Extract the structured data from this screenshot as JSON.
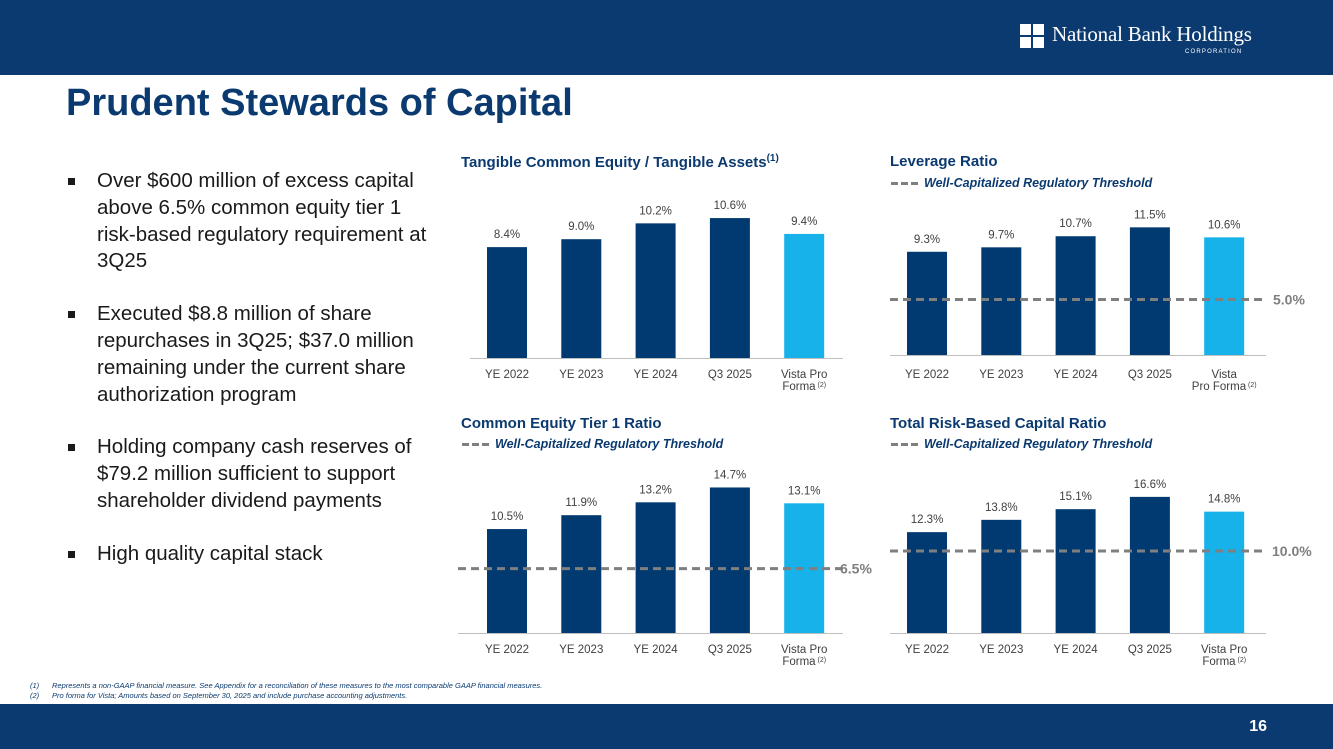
{
  "header": {
    "logo_name": "National Bank Holdings",
    "logo_sub": "CORPORATION",
    "colors": {
      "brand": "#0b3a70",
      "bar_dark": "#003a70",
      "bar_light": "#17b2e9",
      "threshold": "#7f7f7f"
    }
  },
  "title": "Prudent Stewards of Capital",
  "bullets": [
    "Over $600 million of excess capital above 6.5% common equity tier 1 risk-based regulatory requirement at 3Q25",
    "Executed $8.8 million of share repurchases in 3Q25; $37.0 million remaining under the current share authorization program",
    "Holding company cash reserves of $79.2 million sufficient to support shareholder dividend payments",
    "High quality capital stack"
  ],
  "legend_text": "Well-Capitalized Regulatory Threshold",
  "chart_data": [
    {
      "type": "bar",
      "title": "Tangible Common Equity / Tangible Assets",
      "title_sup": "(1)",
      "categories": [
        "YE 2022",
        "YE 2023",
        "YE 2024",
        "Q3 2025",
        "Vista Pro Forma"
      ],
      "category_lines": [
        [
          "YE 2022"
        ],
        [
          "YE 2023"
        ],
        [
          "YE 2024"
        ],
        [
          "Q3 2025"
        ],
        [
          "Vista Pro",
          "Forma"
        ]
      ],
      "values": [
        8.4,
        9.0,
        10.2,
        10.6,
        9.4
      ],
      "labels": [
        "8.4%",
        "9.0%",
        "10.2%",
        "10.6%",
        "9.4%"
      ],
      "highlight_index": 4,
      "footnote_ref": "(2)",
      "threshold": null
    },
    {
      "type": "bar",
      "title": "Leverage Ratio",
      "categories": [
        "YE 2022",
        "YE 2023",
        "YE 2024",
        "Q3 2025",
        "Vista Pro Forma"
      ],
      "category_lines": [
        [
          "YE 2022"
        ],
        [
          "YE 2023"
        ],
        [
          "YE 2024"
        ],
        [
          "Q3 2025"
        ],
        [
          "Vista",
          "Pro Forma"
        ]
      ],
      "values": [
        9.3,
        9.7,
        10.7,
        11.5,
        10.6
      ],
      "labels": [
        "9.3%",
        "9.7%",
        "10.7%",
        "11.5%",
        "10.6%"
      ],
      "highlight_index": 4,
      "footnote_ref": "(2)",
      "threshold": 5.0,
      "threshold_label": "5.0%"
    },
    {
      "type": "bar",
      "title": "Common Equity Tier 1 Ratio",
      "categories": [
        "YE 2022",
        "YE 2023",
        "YE 2024",
        "Q3 2025",
        "Vista Pro Forma"
      ],
      "category_lines": [
        [
          "YE 2022"
        ],
        [
          "YE 2023"
        ],
        [
          "YE 2024"
        ],
        [
          "Q3 2025"
        ],
        [
          "Vista Pro",
          "Forma"
        ]
      ],
      "values": [
        10.5,
        11.9,
        13.2,
        14.7,
        13.1
      ],
      "labels": [
        "10.5%",
        "11.9%",
        "13.2%",
        "14.7%",
        "13.1%"
      ],
      "highlight_index": 4,
      "footnote_ref": "(2)",
      "threshold": 6.5,
      "threshold_label": "6.5%"
    },
    {
      "type": "bar",
      "title": "Total Risk-Based Capital Ratio",
      "categories": [
        "YE 2022",
        "YE 2023",
        "YE 2024",
        "Q3 2025",
        "Vista Pro Forma"
      ],
      "category_lines": [
        [
          "YE 2022"
        ],
        [
          "YE 2023"
        ],
        [
          "YE 2024"
        ],
        [
          "Q3 2025"
        ],
        [
          "Vista Pro",
          "Forma"
        ]
      ],
      "values": [
        12.3,
        13.8,
        15.1,
        16.6,
        14.8
      ],
      "labels": [
        "12.3%",
        "13.8%",
        "15.1%",
        "16.6%",
        "14.8%"
      ],
      "highlight_index": 4,
      "footnote_ref": "(2)",
      "threshold": 10.0,
      "threshold_label": "10.0%"
    }
  ],
  "footnotes": [
    {
      "num": "(1)",
      "text": "Represents a non-GAAP financial measure.  See Appendix for a reconciliation of these measures to the most comparable GAAP financial measures."
    },
    {
      "num": "(2)",
      "text": "Pro forma for Vista; Amounts based on September 30, 2025 and include purchase accounting adjustments."
    }
  ],
  "page_number": "16"
}
